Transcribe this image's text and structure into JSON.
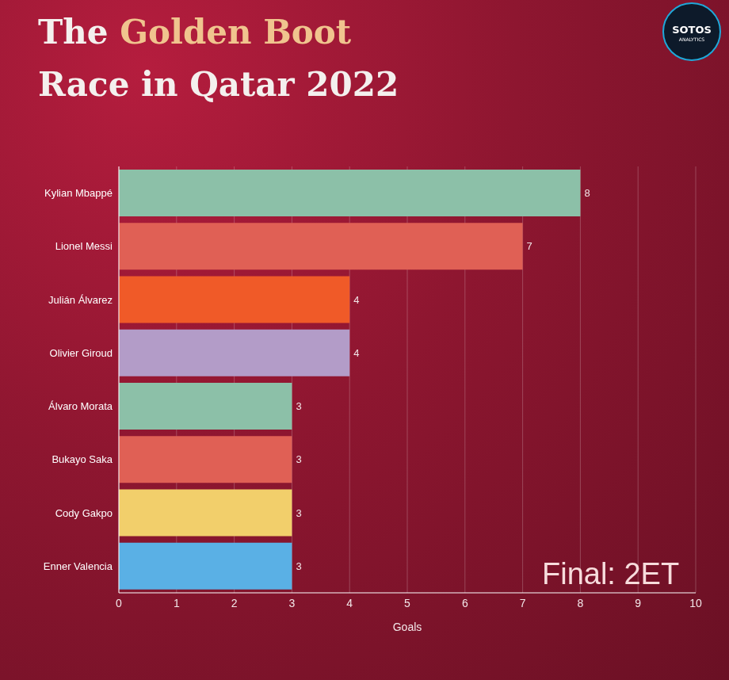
{
  "chart_data": {
    "type": "bar",
    "orientation": "horizontal",
    "title": "The Golden Boot Race in Qatar 2022",
    "annotation": "Final: 2ET",
    "logo": "SOTOS ANALYTICS",
    "x_label": "Goals",
    "categories": [
      "Kylian Mbappé",
      "Lionel Messi",
      "Julián Álvarez",
      "Olivier Giroud",
      "Álvaro Morata",
      "Bukayo Saka",
      "Cody Gakpo",
      "Enner Valencia"
    ],
    "values": [
      8,
      7,
      4,
      4,
      3,
      3,
      3,
      3
    ],
    "colors": [
      "#8cc0a8",
      "#e06055",
      "#f05a28",
      "#b39cc8",
      "#8cc0a8",
      "#e06055",
      "#f2cf6b",
      "#5ab0e5"
    ],
    "xlim": [
      0,
      10
    ],
    "xticks": [
      0,
      1,
      2,
      3,
      4,
      5,
      6,
      7,
      8,
      9,
      10
    ],
    "grid": true,
    "data_labels": true
  }
}
